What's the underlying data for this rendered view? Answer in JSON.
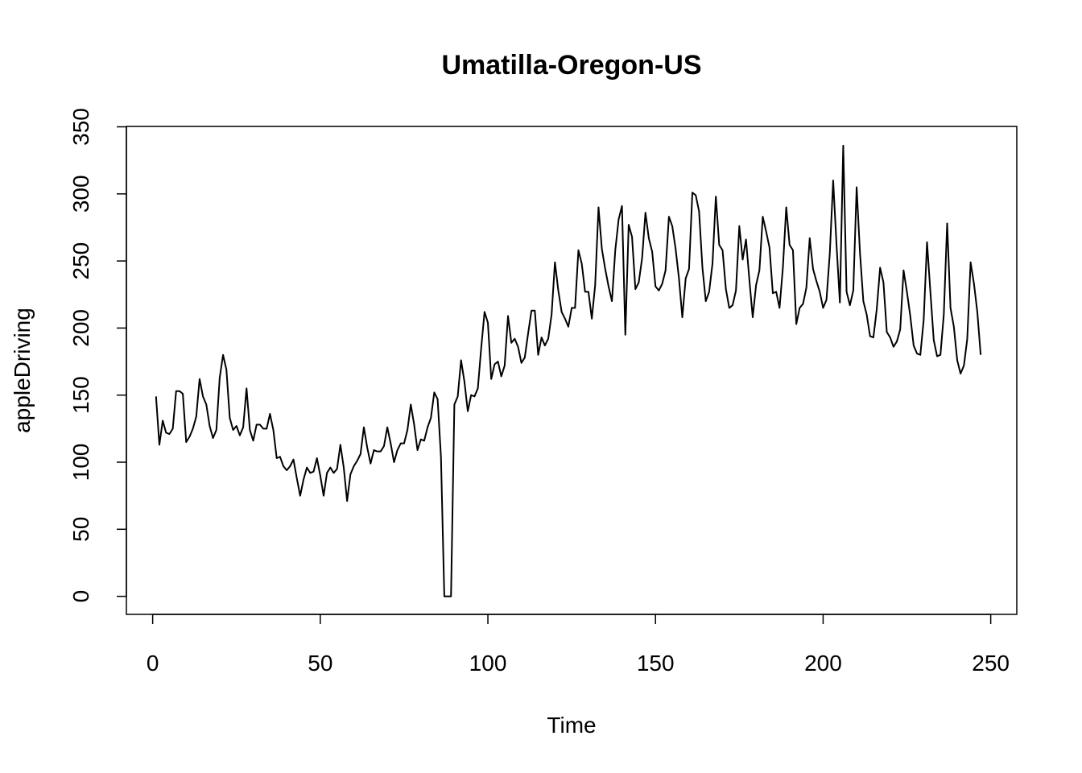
{
  "chart_data": {
    "type": "line",
    "title": "Umatilla-Oregon-US",
    "xlabel": "Time",
    "ylabel": "appleDriving",
    "xlim": [
      1,
      248
    ],
    "ylim": [
      0,
      350
    ],
    "x_ticks": [
      0,
      50,
      100,
      150,
      200,
      250
    ],
    "x_tick_labels": [
      "0",
      "50",
      "100",
      "150",
      "200",
      "250"
    ],
    "y_ticks": [
      0,
      50,
      100,
      150,
      200,
      250,
      300,
      350
    ],
    "y_tick_labels": [
      "0",
      "50",
      "100",
      "150",
      "200",
      "250",
      "300",
      "350"
    ],
    "grid": false,
    "line_color": "#000000",
    "series": [
      {
        "x_start": 1,
        "values": [
          149,
          113,
          131,
          122,
          121,
          125,
          153,
          153,
          151,
          115,
          119,
          125,
          134,
          162,
          149,
          143,
          127,
          118,
          124,
          163,
          180,
          169,
          133,
          124,
          127,
          120,
          126,
          155,
          124,
          116,
          128,
          128,
          125,
          125,
          136,
          124,
          103,
          104,
          97,
          94,
          97,
          102,
          88,
          75,
          87,
          96,
          92,
          93,
          103,
          90,
          75,
          92,
          96,
          92,
          95,
          113,
          96,
          71,
          91,
          97,
          101,
          106,
          126,
          111,
          99,
          109,
          108,
          108,
          112,
          126,
          114,
          100,
          109,
          114,
          114,
          124,
          143,
          128,
          109,
          117,
          116,
          126,
          133,
          152,
          147,
          104,
          0,
          0,
          0,
          143,
          149,
          176,
          160,
          138,
          150,
          149,
          155,
          185,
          212,
          204,
          162,
          173,
          175,
          164,
          172,
          209,
          189,
          192,
          186,
          174,
          178,
          196,
          213,
          213,
          180,
          193,
          187,
          192,
          210,
          249,
          228,
          212,
          207,
          201,
          215,
          215,
          258,
          248,
          227,
          227,
          207,
          232,
          290,
          259,
          244,
          231,
          220,
          258,
          281,
          291,
          195,
          277,
          268,
          229,
          234,
          252,
          286,
          267,
          257,
          231,
          228,
          233,
          243,
          283,
          276,
          259,
          237,
          208,
          237,
          244,
          301,
          299,
          287,
          245,
          220,
          227,
          248,
          298,
          262,
          258,
          229,
          215,
          217,
          228,
          276,
          251,
          266,
          236,
          208,
          232,
          243,
          283,
          272,
          260,
          226,
          227,
          215,
          245,
          290,
          262,
          258,
          203,
          215,
          218,
          230,
          267,
          244,
          235,
          227,
          215,
          221,
          256,
          310,
          262,
          219,
          336,
          227,
          217,
          228,
          305,
          256,
          220,
          210,
          194,
          193,
          214,
          245,
          234,
          197,
          193,
          186,
          190,
          199,
          243,
          227,
          209,
          187,
          181,
          180,
          206,
          264,
          227,
          191,
          179,
          180,
          210,
          278,
          215,
          201,
          176,
          166,
          172,
          192,
          249,
          233,
          212,
          180
        ]
      }
    ]
  }
}
